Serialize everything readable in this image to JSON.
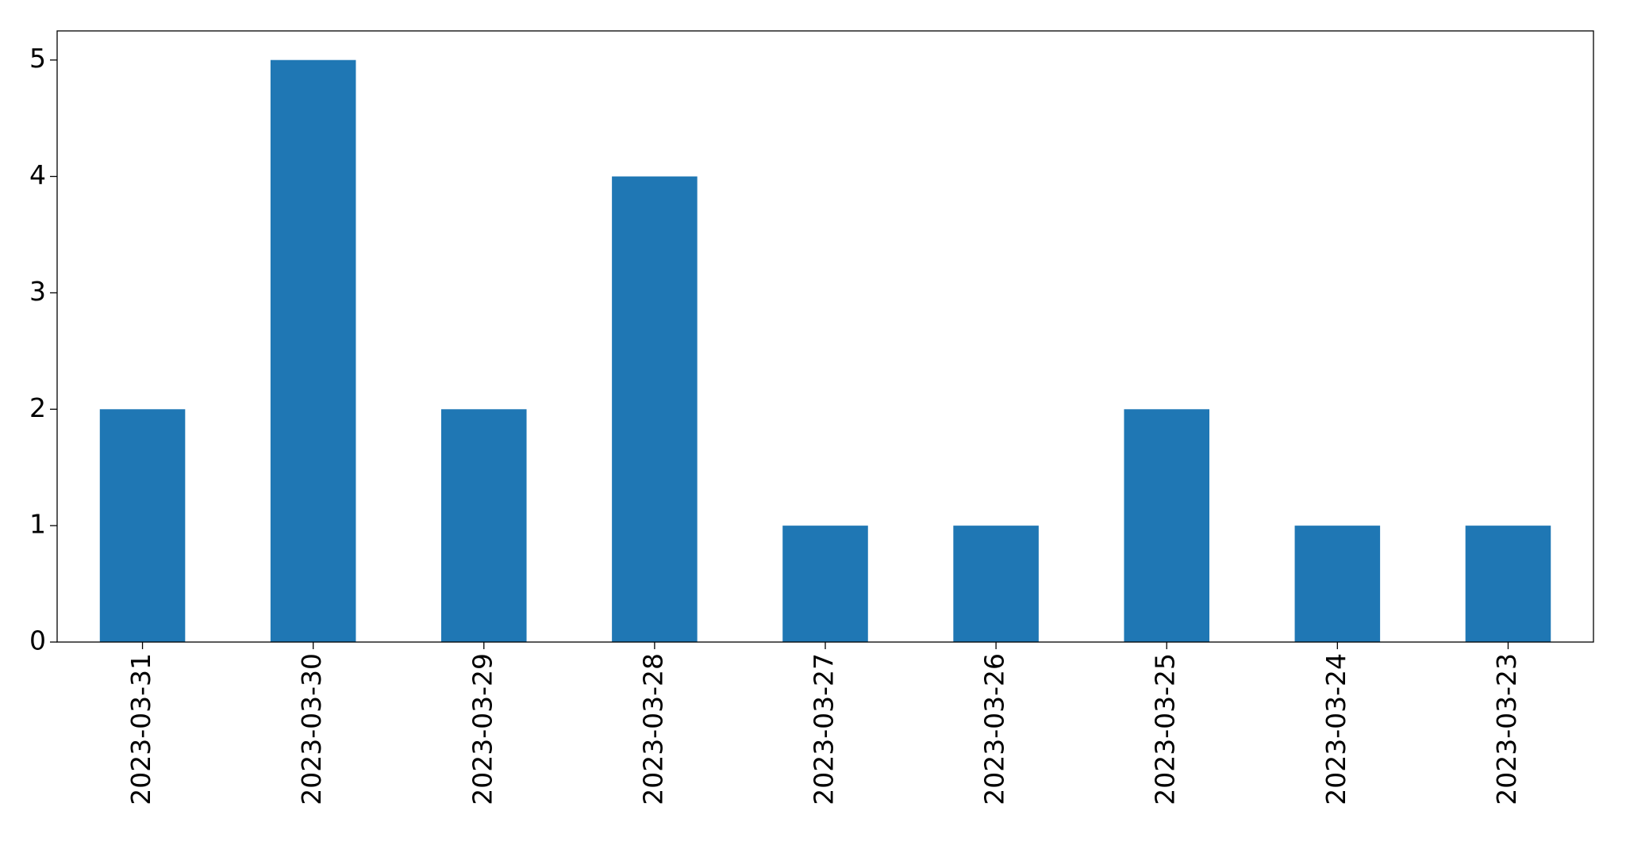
{
  "chart_data": {
    "type": "bar",
    "categories": [
      "2023-03-31",
      "2023-03-30",
      "2023-03-29",
      "2023-03-28",
      "2023-03-27",
      "2023-03-26",
      "2023-03-25",
      "2023-03-24",
      "2023-03-23"
    ],
    "values": [
      2,
      5,
      2,
      4,
      1,
      1,
      2,
      1,
      1
    ],
    "color": "#1f77b4",
    "ylim": [
      0,
      5.25
    ],
    "yticks": [
      0,
      1,
      2,
      3,
      4,
      5
    ],
    "grid": false
  }
}
